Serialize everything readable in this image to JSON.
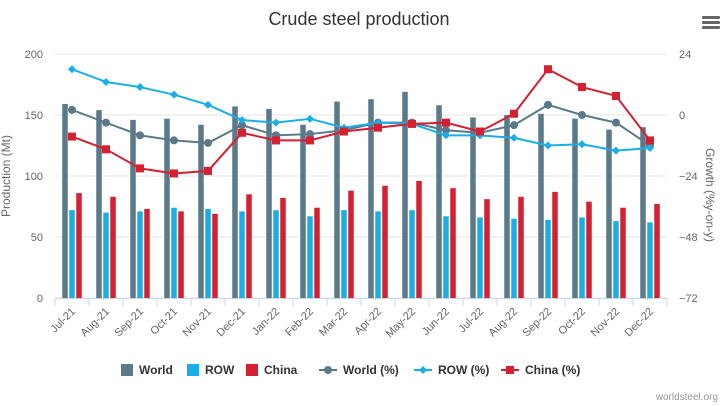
{
  "chart_data": {
    "type": "bar",
    "title": "Crude steel production",
    "categories": [
      "Jul-21",
      "Aug-21",
      "Sep-21",
      "Oct-21",
      "Nov-21",
      "Dec-21",
      "Jan-22",
      "Feb-22",
      "Mar-22",
      "Apr-22",
      "May-22",
      "Jun-22",
      "Jul-22",
      "Aug-22",
      "Sep-22",
      "Oct-22",
      "Nov-22",
      "Dec-22"
    ],
    "ylabel": "Production (Mt)",
    "y2label": "Growth (%y-on-y)",
    "ylim": [
      0,
      200
    ],
    "y2lim": [
      -72,
      24
    ],
    "yticks": [
      "0",
      "50",
      "100",
      "150",
      "200"
    ],
    "y2ticks": [
      "−72",
      "−48",
      "−24",
      "0",
      "24"
    ],
    "grid": true,
    "legend_position": "bottom",
    "series": [
      {
        "name": "World",
        "kind": "bar",
        "axis": "left",
        "color": "#5a7a8a",
        "values": [
          159,
          154,
          146,
          147,
          142,
          157,
          155,
          142,
          161,
          163,
          169,
          158,
          148,
          150,
          151,
          147,
          138,
          140
        ]
      },
      {
        "name": "ROW",
        "kind": "bar",
        "axis": "left",
        "color": "#19aee8",
        "values": [
          72,
          70,
          71,
          74,
          73,
          71,
          72,
          67,
          72,
          71,
          72,
          67,
          66,
          65,
          64,
          66,
          63,
          62
        ]
      },
      {
        "name": "China",
        "kind": "bar",
        "axis": "left",
        "color": "#d42030",
        "values": [
          86,
          83,
          73,
          71,
          69,
          85,
          82,
          74,
          88,
          92,
          96,
          90,
          81,
          83,
          87,
          79,
          74,
          77
        ]
      },
      {
        "name": "World (%)",
        "kind": "line",
        "axis": "right",
        "color": "#5a7a8a",
        "values": [
          2,
          -3,
          -8,
          -10,
          -11,
          -4,
          -8,
          -7.5,
          -6,
          -3,
          -3,
          -6,
          -7,
          -4,
          4,
          0,
          -3,
          -12
        ]
      },
      {
        "name": "ROW (%)",
        "kind": "line",
        "axis": "right",
        "color": "#19aee8",
        "values": [
          18,
          13,
          11,
          8,
          4,
          -2,
          -3,
          -1.5,
          -5,
          -3,
          -3.5,
          -8,
          -8,
          -9,
          -12,
          -11.5,
          -14,
          -13
        ]
      },
      {
        "name": "China (%)",
        "kind": "line",
        "axis": "right",
        "color": "#d42030",
        "values": [
          -8.5,
          -13.5,
          -21,
          -23,
          -22,
          -7,
          -10,
          -10,
          -6.5,
          -5,
          -3.5,
          -3,
          -6.5,
          0.5,
          18,
          11,
          7.5,
          -10
        ]
      }
    ]
  },
  "credit": "worldsteel.org",
  "menu_icon": "hamburger-menu-icon"
}
